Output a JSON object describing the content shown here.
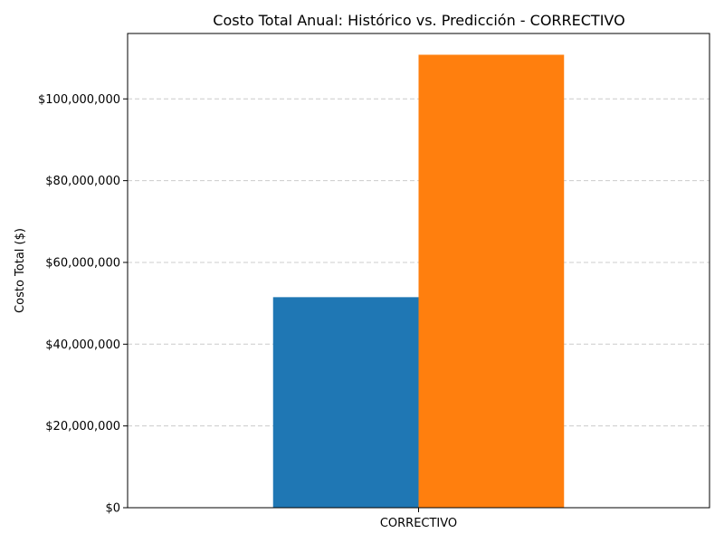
{
  "chart_data": {
    "type": "bar",
    "title": "Costo Total Anual: Histórico vs. Predicción - CORRECTIVO",
    "xlabel": "",
    "ylabel": "Costo Total ($)",
    "categories": [
      "CORRECTIVO"
    ],
    "series": [
      {
        "color": "#1f77b4",
        "values": [
          51500000
        ]
      },
      {
        "color": "#ff7f0e",
        "values": [
          110800000
        ]
      }
    ],
    "ylim": [
      0,
      116000000
    ],
    "yticks": [
      0,
      20000000,
      40000000,
      60000000,
      80000000,
      100000000
    ],
    "ytick_labels": [
      "$0",
      "$20,000,000",
      "$40,000,000",
      "$60,000,000",
      "$80,000,000",
      "$100,000,000"
    ],
    "grid": "y-dashed",
    "legend": "none"
  }
}
